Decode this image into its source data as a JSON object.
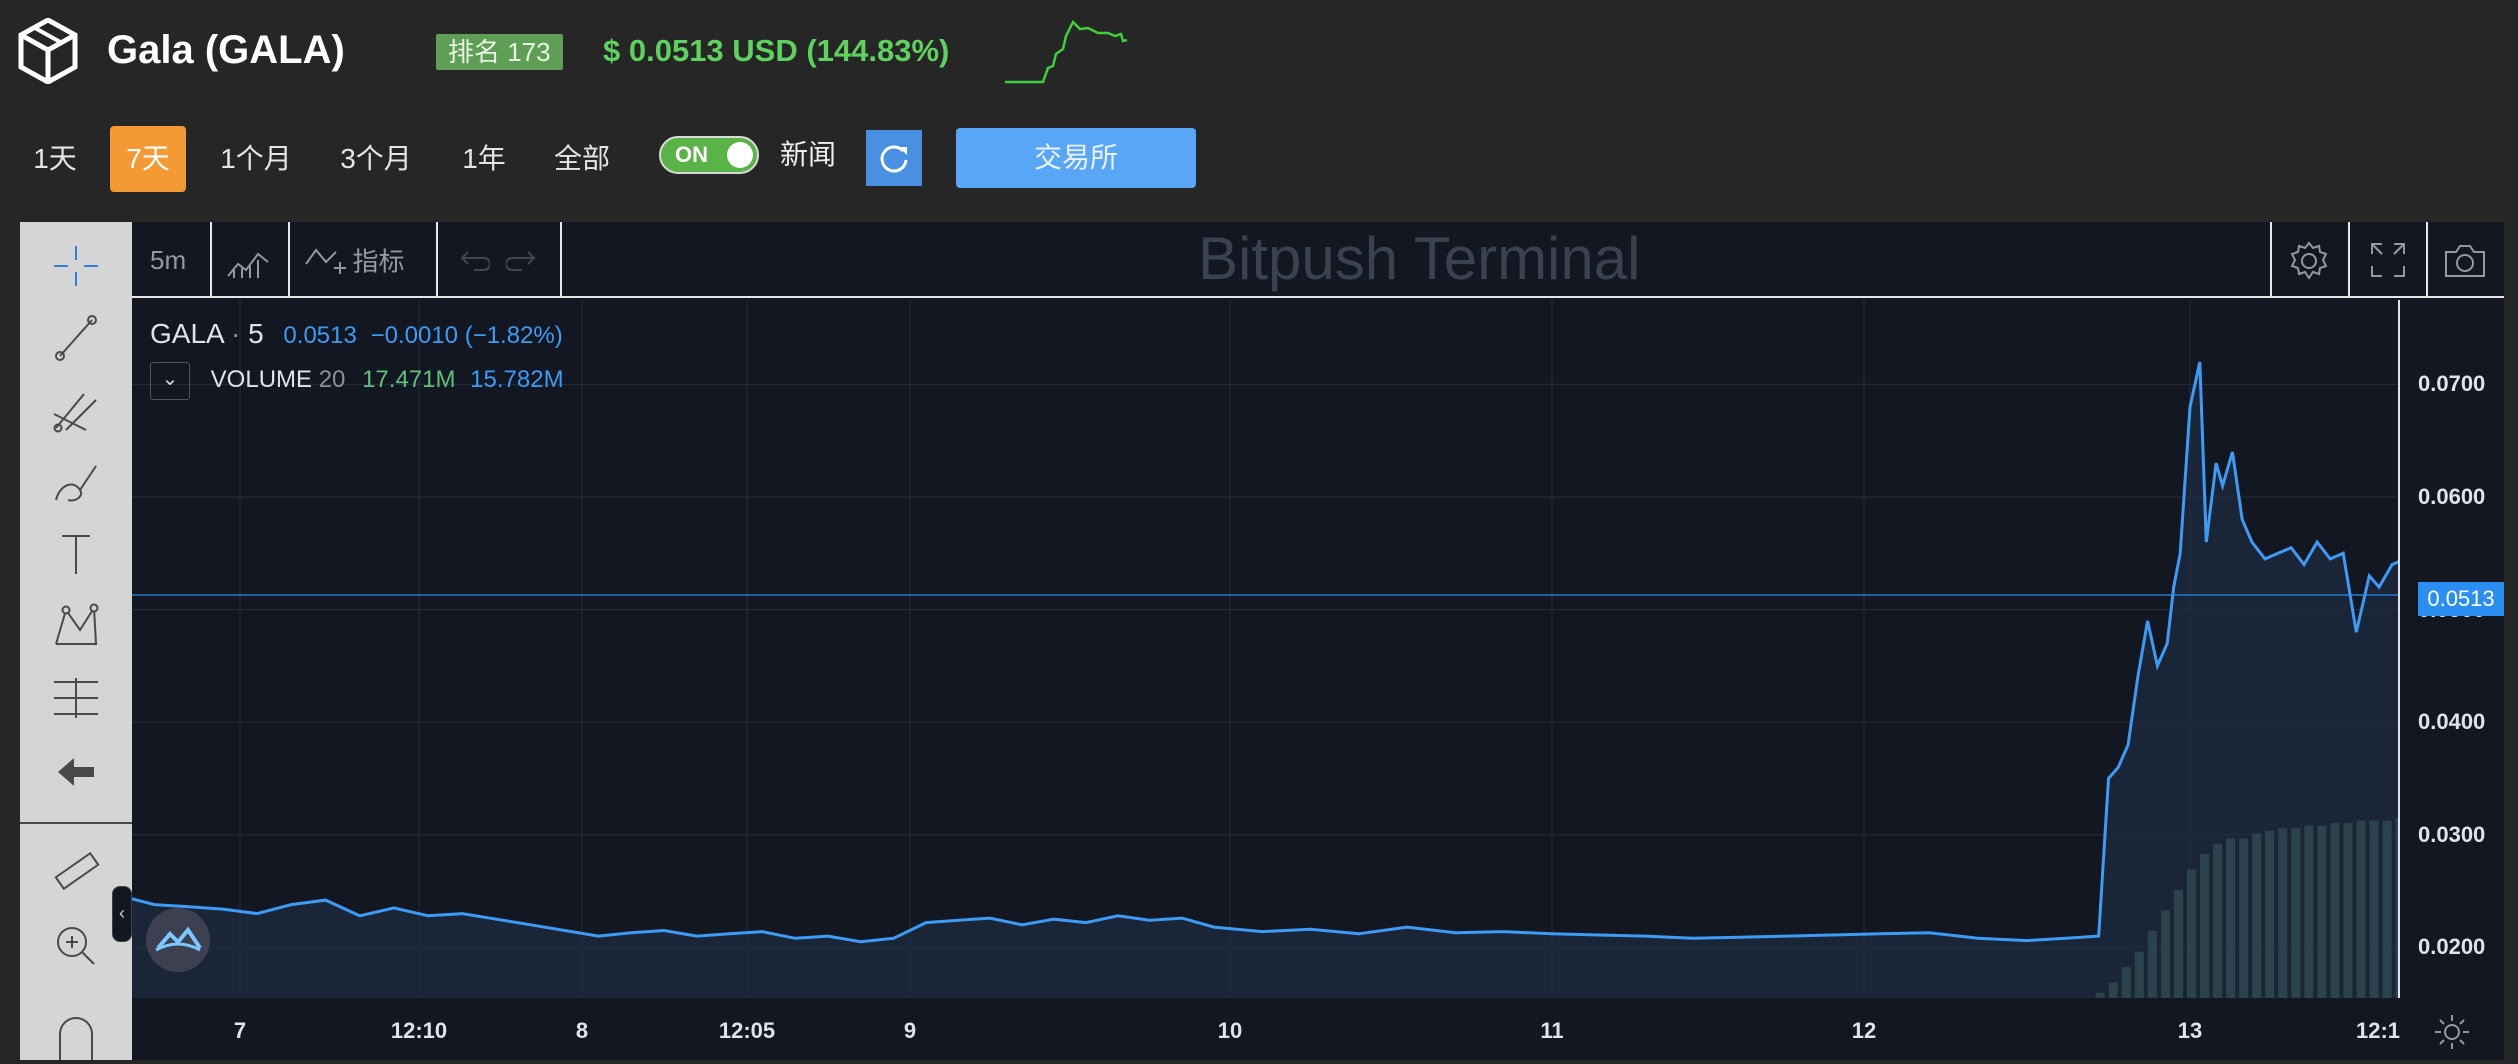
{
  "header": {
    "title": "Gala (GALA)",
    "rank_badge": "排名 173",
    "price_text": "$ 0.0513 USD (144.83%)",
    "colors": {
      "price": "#5ed25e",
      "rank_bg": "#5f9e55"
    }
  },
  "ranges": {
    "items": [
      {
        "label": "1天"
      },
      {
        "label": "7天"
      },
      {
        "label": "1个月"
      },
      {
        "label": "3个月"
      },
      {
        "label": "1年"
      },
      {
        "label": "全部"
      }
    ],
    "selected": "7天",
    "toggle": {
      "label": "ON",
      "state": "on"
    },
    "news_label": "新闻",
    "exchange_label": "交易所"
  },
  "chart_toolbar": {
    "interval": "5m",
    "indicators_label": "指标",
    "watermark": "Bitpush Terminal"
  },
  "legend": {
    "symbol": "GALA",
    "separator": "·",
    "interval": "5",
    "price": "0.0513",
    "change": "−0.0010 (−1.82%)",
    "volume_label": "VOLUME",
    "volume_period": "20",
    "volume_value_1": "17.471M",
    "volume_value_2": "15.782M",
    "collapse_icon": "⌄"
  },
  "price_tag": "0.0513",
  "left_tools": [
    "crosshair-icon",
    "trend-line-icon",
    "pitchfork-icon",
    "brush-icon",
    "text-icon",
    "pattern-icon",
    "fib-icon",
    "back-arrow-icon",
    "ruler-icon",
    "zoom-in-icon",
    "magnet-icon"
  ],
  "chart_data": {
    "type": "line",
    "x_labels": [
      "7",
      "12:10",
      "8",
      "12:05",
      "9",
      "10",
      "11",
      "12",
      "13",
      "12:1"
    ],
    "y_ticks": [
      "0.0700",
      "0.0600",
      "0.0500",
      "0.0400",
      "0.0300",
      "0.0200"
    ],
    "ylim": [
      0.0155,
      0.0775
    ],
    "last_price": 0.0513,
    "series": [
      {
        "type": "line",
        "x_day": [
          6.66,
          6.75,
          6.85,
          6.95,
          7.05,
          7.15,
          7.25,
          7.35,
          7.45,
          7.55,
          7.65,
          7.75,
          7.85,
          7.95,
          8.05,
          8.15,
          8.25,
          8.35,
          8.45,
          8.55,
          8.65,
          8.75,
          8.85,
          8.95,
          9.05,
          9.15,
          9.25,
          9.35,
          9.45,
          9.55,
          9.65,
          9.75,
          9.85,
          9.95,
          10.1,
          10.25,
          10.4,
          10.55,
          10.7,
          10.85,
          11.0,
          11.15,
          11.3,
          11.45,
          11.6,
          11.75,
          11.9,
          12.05,
          12.2,
          12.35,
          12.5,
          12.62,
          12.72,
          12.75,
          12.78,
          12.81,
          12.84,
          12.87,
          12.9,
          12.93,
          12.95,
          12.97,
          13.0,
          13.03,
          13.05,
          13.08,
          13.1,
          13.13,
          13.16,
          13.19,
          13.23,
          13.27,
          13.31,
          13.35,
          13.39,
          13.43,
          13.47,
          13.51,
          13.55,
          13.58,
          13.62,
          13.66,
          13.7,
          13.74,
          13.78,
          13.82,
          13.86
        ],
        "y": [
          0.0245,
          0.0238,
          0.0236,
          0.0234,
          0.023,
          0.0238,
          0.0242,
          0.0228,
          0.0235,
          0.0228,
          0.023,
          0.0225,
          0.022,
          0.0215,
          0.021,
          0.0213,
          0.0215,
          0.021,
          0.0212,
          0.0214,
          0.0208,
          0.021,
          0.0205,
          0.0208,
          0.0222,
          0.0224,
          0.0226,
          0.022,
          0.0225,
          0.0222,
          0.0228,
          0.0224,
          0.0226,
          0.0218,
          0.0214,
          0.0216,
          0.0212,
          0.0218,
          0.0213,
          0.0214,
          0.0212,
          0.0211,
          0.021,
          0.0208,
          0.0209,
          0.021,
          0.0211,
          0.0212,
          0.0213,
          0.0208,
          0.0206,
          0.0208,
          0.021,
          0.035,
          0.036,
          0.038,
          0.044,
          0.049,
          0.045,
          0.047,
          0.052,
          0.055,
          0.068,
          0.072,
          0.056,
          0.063,
          0.061,
          0.064,
          0.058,
          0.056,
          0.0545,
          0.055,
          0.0555,
          0.054,
          0.056,
          0.0545,
          0.055,
          0.048,
          0.053,
          0.052,
          0.054,
          0.0545,
          0.054,
          0.0515,
          0.0513,
          0.0513,
          0.0513
        ],
        "color": "#3d9bf5"
      },
      {
        "type": "volume",
        "x_day": [
          12.72,
          12.76,
          12.8,
          12.84,
          12.88,
          12.92,
          12.96,
          13.0,
          13.04,
          13.08,
          13.12,
          13.16,
          13.2,
          13.24,
          13.28,
          13.32,
          13.36,
          13.4,
          13.44,
          13.48,
          13.52,
          13.56,
          13.6,
          13.64,
          13.68,
          13.72,
          13.76,
          13.8
        ],
        "v": [
          0.02,
          0.06,
          0.12,
          0.18,
          0.26,
          0.34,
          0.42,
          0.5,
          0.56,
          0.6,
          0.62,
          0.62,
          0.64,
          0.65,
          0.66,
          0.66,
          0.67,
          0.67,
          0.68,
          0.68,
          0.69,
          0.69,
          0.69,
          0.7,
          0.7,
          0.7,
          0.7,
          0.7
        ],
        "color": "#4b7864"
      }
    ],
    "grid": true,
    "colors": {
      "line": "#3d9bf5",
      "area": "#1e2e42",
      "volume": "#4b7864",
      "grid": "#2a2e39"
    }
  }
}
